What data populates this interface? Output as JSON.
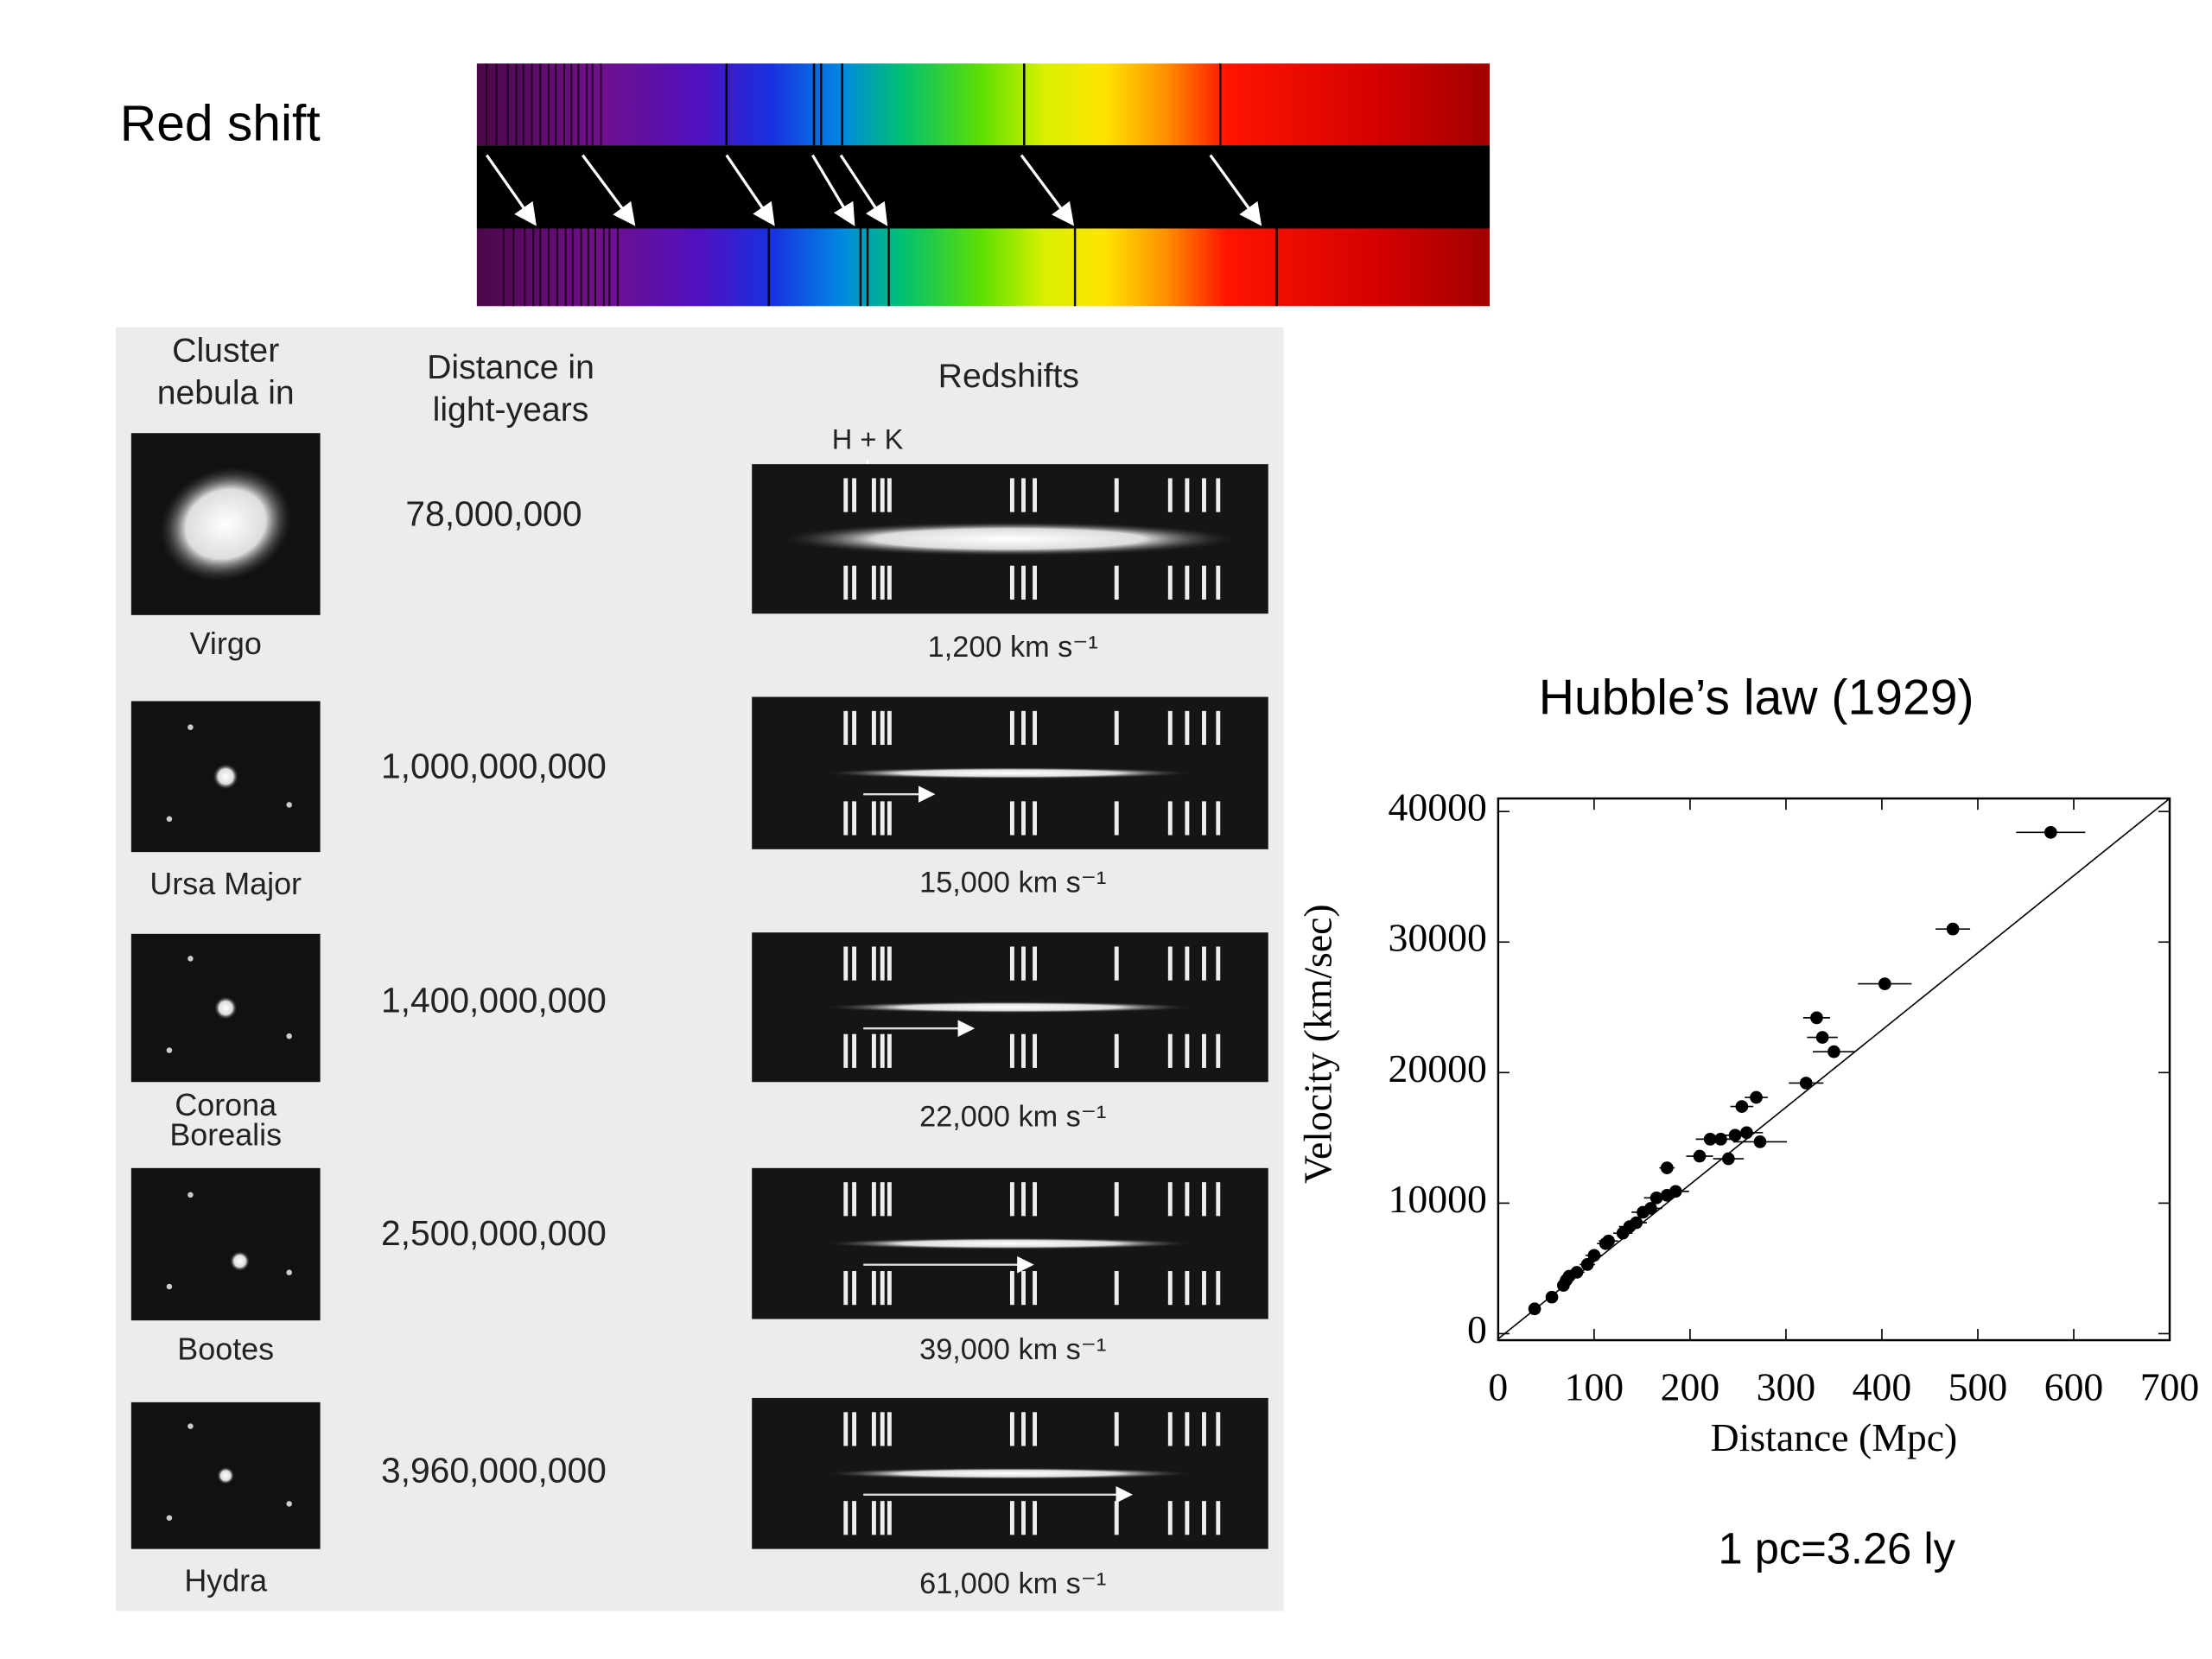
{
  "slide": {
    "title": "Red shift",
    "note": "1 pc=3.26 ly"
  },
  "table": {
    "headers": [
      [
        "Cluster",
        "nebula in"
      ],
      [
        "Distance in",
        "light-years"
      ],
      [
        "Redshifts"
      ]
    ],
    "hk_label": "H + K",
    "rows": [
      {
        "name": [
          "Virgo"
        ],
        "distance": "78,000,000",
        "velocity": "1,200 km s⁻¹"
      },
      {
        "name": [
          "Ursa Major"
        ],
        "distance": "1,000,000,000",
        "velocity": "15,000 km s⁻¹"
      },
      {
        "name": [
          "Corona",
          "Borealis"
        ],
        "distance": "1,400,000,000",
        "velocity": "22,000 km s⁻¹"
      },
      {
        "name": [
          "Bootes"
        ],
        "distance": "2,500,000,000",
        "velocity": "39,000 km s⁻¹"
      },
      {
        "name": [
          "Hydra"
        ],
        "distance": "3,960,000,000",
        "velocity": "61,000 km s⁻¹"
      }
    ]
  },
  "chart_data": {
    "type": "scatter",
    "title": "Hubble’s law (1929)",
    "x_label": "Distance (Mpc)",
    "y_label": "Velocity (km/sec)",
    "x": [
      38,
      56,
      68,
      71,
      74,
      82,
      93,
      100,
      112,
      115,
      130,
      137,
      144,
      151,
      159,
      165,
      176,
      185,
      176,
      210,
      221,
      232,
      240,
      247,
      259,
      273,
      254,
      269,
      321,
      350,
      338,
      332,
      403,
      474,
      576
    ],
    "values": [
      1900,
      2800,
      3700,
      4100,
      4400,
      4700,
      5300,
      6000,
      6900,
      7100,
      7700,
      8200,
      8500,
      9300,
      9600,
      10400,
      10600,
      10900,
      12700,
      13600,
      14900,
      14900,
      13400,
      15200,
      15400,
      14700,
      17400,
      18100,
      19200,
      21600,
      22700,
      24200,
      26800,
      31000,
      38400
    ],
    "xerr": [
      5,
      6,
      6,
      7,
      7,
      8,
      8,
      9,
      9,
      10,
      10,
      11,
      11,
      12,
      12,
      13,
      13,
      14,
      8,
      14,
      15,
      15,
      16,
      16,
      17,
      28,
      12,
      12,
      18,
      22,
      16,
      14,
      28,
      18,
      36
    ],
    "fit_line": {
      "x": [
        0,
        700
      ],
      "y": [
        -400,
        41000
      ]
    },
    "color": "#000000",
    "xlim": [
      0,
      700
    ],
    "ylim": [
      -500,
      41000
    ],
    "xticks": [
      0,
      100,
      200,
      300,
      400,
      500,
      600,
      700
    ],
    "yticks": [
      0,
      10000,
      20000,
      30000,
      40000
    ]
  }
}
